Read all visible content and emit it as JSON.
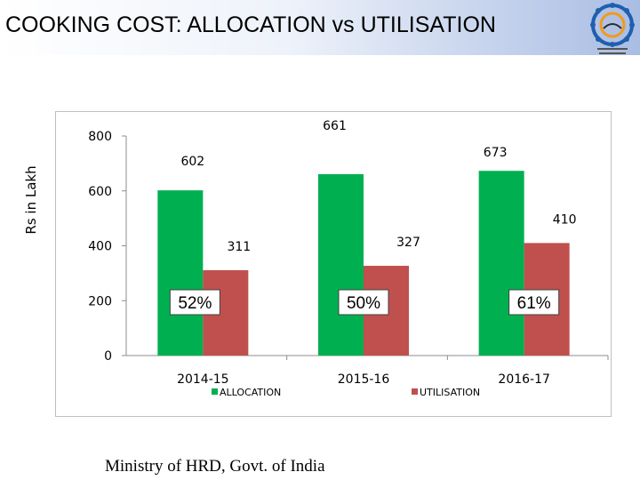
{
  "header": {
    "title": "COOKING COST: ALLOCATION vs UTILISATION"
  },
  "logo": {
    "name": "ministry-emblem-icon",
    "caption_line1": "सबका साथ विकास",
    "caption_line2": "भारत सरकार"
  },
  "footer": {
    "text": "Ministry of HRD, Govt. of India"
  },
  "colors": {
    "allocation": "#00b050",
    "utilisation": "#c0504d",
    "title_gradient_end": "#a9bde3"
  },
  "chart_data": {
    "type": "bar",
    "title": "",
    "xlabel": "",
    "ylabel": "Rs in Lakh",
    "categories": [
      "2014-15",
      "2015-16",
      "2016-17"
    ],
    "series": [
      {
        "name": "ALLOCATION",
        "values": [
          602,
          661,
          673
        ],
        "labels": [
          "602",
          "661",
          "673"
        ]
      },
      {
        "name": "UTILISATION",
        "values": [
          311,
          327,
          410
        ],
        "labels": [
          "311",
          "327",
          "410"
        ]
      }
    ],
    "percentages": [
      "52%",
      "50%",
      "61%"
    ],
    "ylim": [
      0,
      800
    ],
    "yticks": [
      "0",
      "200",
      "400",
      "600",
      "800"
    ],
    "grid": false,
    "legend": "bottom"
  }
}
